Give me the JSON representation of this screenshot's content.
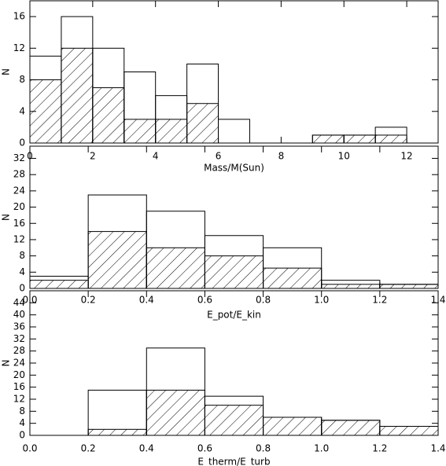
{
  "chart_data": [
    {
      "type": "histogram",
      "xlabel": "Mass/M(Sun)",
      "ylabel": "N",
      "bins": [
        0,
        1,
        2,
        3,
        4,
        5,
        6,
        7,
        8,
        9,
        10,
        11,
        12
      ],
      "series": [
        {
          "style": "outline",
          "values": [
            11,
            16,
            12,
            9,
            6,
            10,
            3,
            0,
            0,
            1,
            1,
            2
          ]
        },
        {
          "style": "hatched",
          "values": [
            8,
            12,
            7,
            3,
            3,
            5,
            0,
            0,
            0,
            1,
            1,
            1
          ]
        }
      ],
      "xlim": [
        0,
        13
      ],
      "xticks": [
        0,
        2,
        4,
        6,
        8,
        10,
        12
      ],
      "ylim": [
        0,
        18
      ],
      "yticks": [
        0,
        4,
        8,
        12,
        16
      ]
    },
    {
      "type": "histogram",
      "xlabel": "E_pot/E_kin",
      "ylabel": "N",
      "bins": [
        0,
        0.2,
        0.4,
        0.6,
        0.8,
        1.0,
        1.2,
        1.4
      ],
      "series": [
        {
          "style": "outline",
          "values": [
            3,
            23,
            19,
            13,
            10,
            2,
            1
          ]
        },
        {
          "style": "hatched",
          "values": [
            2,
            14,
            10,
            8,
            5,
            1,
            1
          ]
        }
      ],
      "xlim": [
        0,
        1.4
      ],
      "xticks": [
        {
          "value": 0,
          "label": "0.0"
        },
        0.2,
        0.4,
        0.6,
        0.8,
        {
          "value": 1,
          "label": "1.0"
        },
        1.2,
        1.4
      ],
      "ylim": [
        0,
        35
      ],
      "yticks": [
        0,
        4,
        8,
        12,
        16,
        20,
        24,
        28,
        32
      ]
    },
    {
      "type": "histogram",
      "xlabel": "E_therm/E_turb",
      "ylabel": "N",
      "bins": [
        0,
        0.2,
        0.4,
        0.6,
        0.8,
        1.0,
        1.2,
        1.4
      ],
      "series": [
        {
          "style": "outline",
          "values": [
            0,
            15,
            29,
            13,
            6,
            5,
            3
          ]
        },
        {
          "style": "hatched",
          "values": [
            0,
            2,
            15,
            10,
            6,
            5,
            3
          ]
        }
      ],
      "xlim": [
        0,
        1.4
      ],
      "xticks": [
        {
          "value": 0,
          "label": "0.0"
        },
        0.2,
        0.4,
        0.6,
        0.8,
        {
          "value": 1,
          "label": "1.0"
        },
        1.2,
        1.4
      ],
      "ylim": [
        0,
        48
      ],
      "yticks": [
        0,
        4,
        8,
        12,
        16,
        20,
        24,
        28,
        32,
        36,
        40,
        44
      ]
    }
  ]
}
